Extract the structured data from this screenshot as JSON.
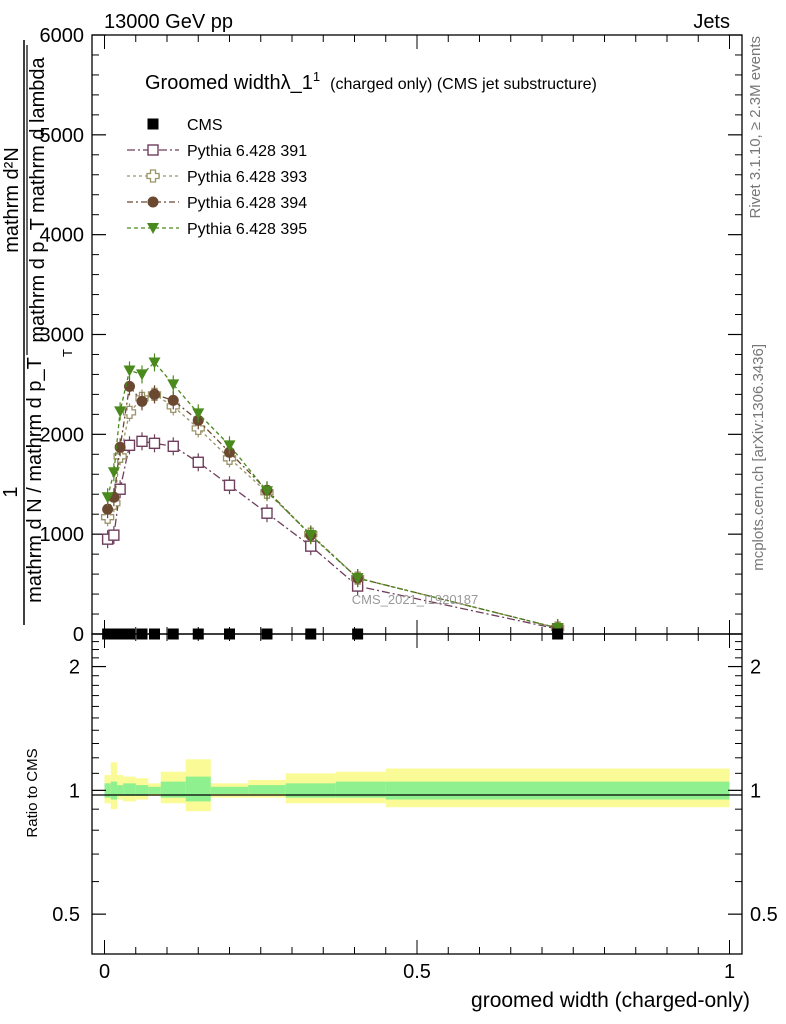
{
  "header": {
    "left": "13000 GeV pp",
    "right": "Jets"
  },
  "side_labels": {
    "rivet": "Rivet 3.1.10, ≥ 2.3M events",
    "mcplots": "mcplots.cern.ch [arXiv:1306.3436]"
  },
  "watermark": "CMS_2021_I1920187",
  "colors": {
    "cms": "#000000",
    "p391": "#6e3e5c",
    "p393": "#9c9368",
    "p394": "#6b4830",
    "p395": "#4a8a1c",
    "band_inner": "#8ef08e",
    "band_outer": "#fafa96"
  },
  "chart_data": [
    {
      "type": "line",
      "title": "Groomed widthλ_1",
      "title_sup": "1",
      "title_suffix": "(charged only) (CMS jet substructure)",
      "ylabel_numer": "1",
      "ylabel_denom": "mathrm d N / mathrm d p_T",
      "ylabel_numer2": "mathrm d²N",
      "ylabel_denom2": "mathrm d p_T mathrm d lambda",
      "ylabel_sub": "T",
      "xlim": [
        -0.02,
        1.02
      ],
      "ylim": [
        0,
        6000
      ],
      "y_ticks": [
        0,
        1000,
        2000,
        3000,
        4000,
        5000,
        6000
      ],
      "y_tick_labels": [
        "0",
        "1000",
        "2000",
        "3000",
        "4000",
        "5000",
        "6000"
      ],
      "legend_position": "top-left",
      "cms_x": [
        0.005,
        0.015,
        0.025,
        0.04,
        0.06,
        0.08,
        0.11,
        0.15,
        0.2,
        0.26,
        0.33,
        0.405,
        0.725
      ],
      "series": [
        {
          "name": "CMS",
          "marker": "filled-square",
          "x": [
            0.005,
            0.015,
            0.025,
            0.04,
            0.06,
            0.08,
            0.11,
            0.15,
            0.2,
            0.26,
            0.33,
            0.405,
            0.725
          ],
          "y": [
            0,
            0,
            0,
            0,
            0,
            0,
            0,
            0,
            0,
            0,
            0,
            0,
            0
          ]
        },
        {
          "name": "Pythia 6.428 391",
          "marker": "open-square",
          "dash": "8,3,2,3",
          "x": [
            0.005,
            0.015,
            0.025,
            0.04,
            0.06,
            0.08,
            0.11,
            0.15,
            0.2,
            0.26,
            0.33,
            0.405,
            0.725
          ],
          "y": [
            950,
            990,
            1450,
            1890,
            1930,
            1910,
            1880,
            1720,
            1490,
            1210,
            880,
            480,
            50
          ]
        },
        {
          "name": "Pythia 6.428 393",
          "marker": "open-cross",
          "dash": "3,3",
          "x": [
            0.005,
            0.015,
            0.025,
            0.04,
            0.06,
            0.08,
            0.11,
            0.15,
            0.2,
            0.26,
            0.33,
            0.405,
            0.725
          ],
          "y": [
            1170,
            1310,
            1780,
            2220,
            2360,
            2400,
            2280,
            2060,
            1760,
            1420,
            1000,
            560,
            60
          ]
        },
        {
          "name": "Pythia 6.428 394",
          "marker": "filled-circle",
          "dash": "6,3,2,3",
          "x": [
            0.005,
            0.015,
            0.025,
            0.04,
            0.06,
            0.08,
            0.11,
            0.15,
            0.2,
            0.26,
            0.33,
            0.405,
            0.725
          ],
          "y": [
            1250,
            1370,
            1870,
            2480,
            2330,
            2400,
            2340,
            2140,
            1820,
            1440,
            990,
            560,
            60
          ]
        },
        {
          "name": "Pythia 6.428 395",
          "marker": "filled-triangle-down",
          "dash": "4,3",
          "x": [
            0.005,
            0.015,
            0.025,
            0.04,
            0.06,
            0.08,
            0.11,
            0.15,
            0.2,
            0.26,
            0.33,
            0.405,
            0.725
          ],
          "y": [
            1370,
            1620,
            2230,
            2640,
            2600,
            2720,
            2500,
            2210,
            1890,
            1430,
            990,
            560,
            60
          ]
        }
      ]
    },
    {
      "type": "area",
      "ylabel": "Ratio to CMS",
      "xlabel": "groomed width (charged-only)",
      "xlim": [
        -0.02,
        1.02
      ],
      "ylim": [
        0.4,
        2.4
      ],
      "y_ticks": [
        0.5,
        1,
        2
      ],
      "y_tick_labels": [
        "0.5",
        "1",
        "2"
      ],
      "x_ticks": [
        0,
        0.5,
        1
      ],
      "x_tick_labels": [
        "0",
        "0.5",
        "1"
      ],
      "bins": [
        {
          "lo": 0.0,
          "hi": 0.01,
          "inner": [
            0.96,
            1.04
          ],
          "outer": [
            0.93,
            1.09
          ]
        },
        {
          "lo": 0.01,
          "hi": 0.02,
          "inner": [
            0.95,
            1.05
          ],
          "outer": [
            0.9,
            1.17
          ]
        },
        {
          "lo": 0.02,
          "hi": 0.03,
          "inner": [
            0.97,
            1.03
          ],
          "outer": [
            0.95,
            1.09
          ]
        },
        {
          "lo": 0.03,
          "hi": 0.05,
          "inner": [
            0.97,
            1.04
          ],
          "outer": [
            0.94,
            1.08
          ]
        },
        {
          "lo": 0.05,
          "hi": 0.07,
          "inner": [
            0.97,
            1.03
          ],
          "outer": [
            0.95,
            1.07
          ]
        },
        {
          "lo": 0.07,
          "hi": 0.09,
          "inner": [
            0.98,
            1.02
          ],
          "outer": [
            0.97,
            1.04
          ]
        },
        {
          "lo": 0.09,
          "hi": 0.13,
          "inner": [
            0.96,
            1.05
          ],
          "outer": [
            0.93,
            1.11
          ]
        },
        {
          "lo": 0.13,
          "hi": 0.17,
          "inner": [
            0.94,
            1.08
          ],
          "outer": [
            0.89,
            1.19
          ]
        },
        {
          "lo": 0.17,
          "hi": 0.23,
          "inner": [
            0.98,
            1.02
          ],
          "outer": [
            0.96,
            1.04
          ]
        },
        {
          "lo": 0.23,
          "hi": 0.29,
          "inner": [
            0.98,
            1.03
          ],
          "outer": [
            0.96,
            1.06
          ]
        },
        {
          "lo": 0.29,
          "hi": 0.37,
          "inner": [
            0.96,
            1.04
          ],
          "outer": [
            0.93,
            1.1
          ]
        },
        {
          "lo": 0.37,
          "hi": 0.45,
          "inner": [
            0.96,
            1.05
          ],
          "outer": [
            0.93,
            1.11
          ]
        },
        {
          "lo": 0.45,
          "hi": 1.0,
          "inner": [
            0.95,
            1.05
          ],
          "outer": [
            0.91,
            1.13
          ]
        }
      ]
    }
  ]
}
